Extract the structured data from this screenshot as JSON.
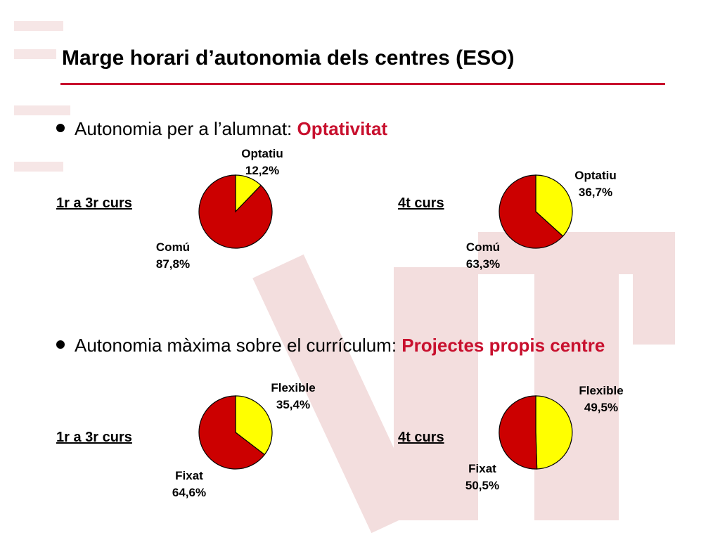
{
  "colors": {
    "accent": "#c8102e",
    "pie_main": "#cc0000",
    "pie_secondary": "#ffff00",
    "watermark": "#f2d8d8"
  },
  "slide": {
    "title": "Marge horari d’autonomia dels centres (ESO)"
  },
  "sections": [
    {
      "bullet_text": "Autonomia per a l’alumnat: ",
      "bullet_accent": "Optativitat"
    },
    {
      "bullet_text": "Autonomia màxima sobre el currículum: ",
      "bullet_accent": "Projectes propis centre"
    }
  ],
  "chart_data": [
    {
      "type": "pie",
      "group_label": "1r a 3r curs",
      "slices": [
        {
          "name": "Optatiu",
          "value": 12.2,
          "label": "12,2%",
          "color": "#ffff00"
        },
        {
          "name": "Comú",
          "value": 87.8,
          "label": "87,8%",
          "color": "#cc0000"
        }
      ]
    },
    {
      "type": "pie",
      "group_label": "4t curs",
      "slices": [
        {
          "name": "Optatiu",
          "value": 36.7,
          "label": "36,7%",
          "color": "#ffff00"
        },
        {
          "name": "Comú",
          "value": 63.3,
          "label": "63,3%",
          "color": "#cc0000"
        }
      ]
    },
    {
      "type": "pie",
      "group_label": "1r a 3r curs",
      "slices": [
        {
          "name": "Flexible",
          "value": 35.4,
          "label": "35,4%",
          "color": "#ffff00"
        },
        {
          "name": "Fixat",
          "value": 64.6,
          "label": "64,6%",
          "color": "#cc0000"
        }
      ]
    },
    {
      "type": "pie",
      "group_label": "4t curs",
      "slices": [
        {
          "name": "Flexible",
          "value": 49.5,
          "label": "49,5%",
          "color": "#ffff00"
        },
        {
          "name": "Fixat",
          "value": 50.5,
          "label": "50,5%",
          "color": "#cc0000"
        }
      ]
    }
  ]
}
